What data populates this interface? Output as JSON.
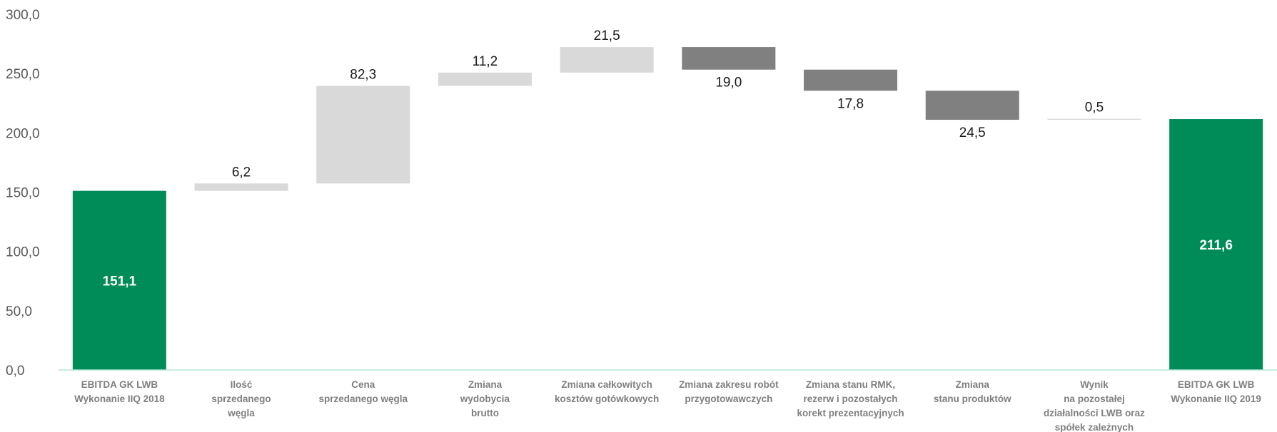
{
  "chart_data": {
    "type": "waterfall",
    "ylim": [
      0,
      300
    ],
    "yticks": [
      "0,0",
      "50,0",
      "100,0",
      "150,0",
      "200,0",
      "250,0",
      "300,0"
    ],
    "grid": false,
    "bars": [
      {
        "category": [
          "EBITDA GK LWB",
          "Wykonanie IIQ 2018"
        ],
        "kind": "total",
        "start": 0,
        "end": 151.1,
        "label": "151,1"
      },
      {
        "category": [
          "Ilość",
          "sprzedanego",
          "węgla"
        ],
        "kind": "increase",
        "start": 151.1,
        "end": 157.3,
        "label": "6,2"
      },
      {
        "category": [
          "Cena",
          "sprzedanego węgla"
        ],
        "kind": "increase",
        "start": 157.3,
        "end": 239.6,
        "label": "82,3"
      },
      {
        "category": [
          "Zmiana",
          "wydobycia",
          "brutto"
        ],
        "kind": "increase",
        "start": 239.6,
        "end": 250.8,
        "label": "11,2"
      },
      {
        "category": [
          "Zmiana całkowitych",
          "kosztów gotówkowych"
        ],
        "kind": "increase",
        "start": 250.8,
        "end": 272.3,
        "label": "21,5"
      },
      {
        "category": [
          "Zmiana zakresu robót",
          "przygotowawczych"
        ],
        "kind": "decrease",
        "start": 272.3,
        "end": 253.3,
        "label": "19,0"
      },
      {
        "category": [
          "Zmiana stanu RMK,",
          "rezerw i pozostałych",
          "korekt prezentacyjnych"
        ],
        "kind": "decrease",
        "start": 253.3,
        "end": 235.5,
        "label": "17,8"
      },
      {
        "category": [
          "Zmiana",
          "stanu produktów"
        ],
        "kind": "decrease",
        "start": 235.5,
        "end": 211.0,
        "label": "24,5"
      },
      {
        "category": [
          "Wynik",
          "na pozostałej",
          "działalności LWB oraz",
          "spółek zależnych"
        ],
        "kind": "increase",
        "start": 211.0,
        "end": 211.5,
        "label": "0,5"
      },
      {
        "category": [
          "EBITDA GK LWB",
          "Wykonanie IIQ 2019"
        ],
        "kind": "total",
        "start": 0,
        "end": 211.6,
        "label": "211,6"
      }
    ],
    "colors": {
      "total": "#008c58",
      "increase": "#d9d9d9",
      "decrease": "#808080",
      "axis": "#b3e6d6"
    }
  }
}
